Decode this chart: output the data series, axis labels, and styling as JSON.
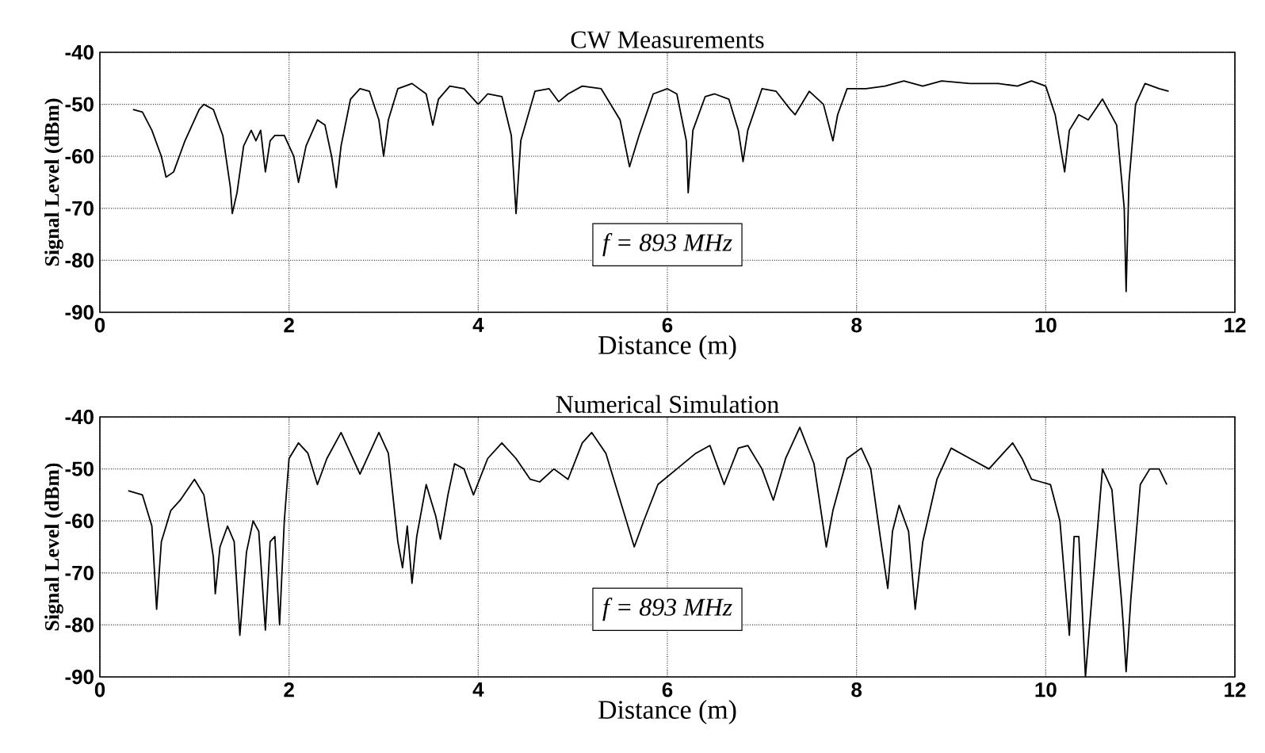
{
  "chart_data": [
    {
      "type": "line",
      "title": "CW Measurements",
      "xlabel": "Distance (m)",
      "ylabel": "Signal Level (dBm)",
      "xlim": [
        0,
        12
      ],
      "ylim": [
        -90,
        -40
      ],
      "xticks": [
        0,
        2,
        4,
        6,
        8,
        10,
        12
      ],
      "yticks": [
        -90,
        -80,
        -70,
        -60,
        -50,
        -40
      ],
      "grid": true,
      "annotations": [
        "f = 893 MHz"
      ],
      "series": [
        {
          "color": "#000000",
          "x": [
            0.35,
            0.45,
            0.55,
            0.65,
            0.7,
            0.78,
            0.9,
            1.05,
            1.1,
            1.2,
            1.3,
            1.38,
            1.4,
            1.45,
            1.52,
            1.6,
            1.65,
            1.7,
            1.75,
            1.8,
            1.85,
            1.95,
            2.05,
            2.1,
            2.18,
            2.3,
            2.38,
            2.45,
            2.5,
            2.55,
            2.65,
            2.75,
            2.85,
            2.95,
            3.0,
            3.05,
            3.15,
            3.3,
            3.45,
            3.52,
            3.58,
            3.7,
            3.85,
            4.0,
            4.1,
            4.25,
            4.35,
            4.4,
            4.45,
            4.6,
            4.75,
            4.85,
            4.95,
            5.1,
            5.3,
            5.5,
            5.6,
            5.7,
            5.85,
            6.0,
            6.1,
            6.2,
            6.22,
            6.27,
            6.4,
            6.5,
            6.65,
            6.75,
            6.8,
            6.85,
            7.0,
            7.15,
            7.3,
            7.35,
            7.5,
            7.65,
            7.75,
            7.8,
            7.9,
            8.1,
            8.3,
            8.5,
            8.7,
            8.9,
            9.2,
            9.5,
            9.7,
            9.85,
            10.0,
            10.1,
            10.2,
            10.25,
            10.35,
            10.45,
            10.6,
            10.75,
            10.83,
            10.85,
            10.88,
            10.95,
            11.05,
            11.2,
            11.3
          ],
          "values": [
            -51,
            -51.5,
            -55,
            -60,
            -64,
            -63,
            -57,
            -51,
            -50,
            -51,
            -56,
            -66,
            -71,
            -67,
            -58,
            -55,
            -57,
            -55,
            -63,
            -57,
            -56,
            -56,
            -60,
            -65,
            -58,
            -53,
            -54,
            -60,
            -66,
            -58,
            -49,
            -47,
            -47.5,
            -53,
            -60,
            -53,
            -47,
            -46,
            -48,
            -54,
            -49,
            -46.5,
            -47,
            -50,
            -48,
            -48.5,
            -56,
            -71,
            -57,
            -47.5,
            -47,
            -49.5,
            -48,
            -46.5,
            -47,
            -53,
            -62,
            -56,
            -48,
            -47,
            -48,
            -57,
            -67,
            -55,
            -48.5,
            -48,
            -49,
            -55,
            -61,
            -55,
            -47,
            -47.5,
            -51,
            -52,
            -47.5,
            -50,
            -57,
            -52,
            -47,
            -47,
            -46.5,
            -45.5,
            -46.5,
            -45.5,
            -46,
            -46,
            -46.5,
            -45.5,
            -46.5,
            -52,
            -63,
            -55,
            -52,
            -53,
            -49,
            -54,
            -70,
            -86,
            -65,
            -50,
            -46,
            -47,
            -47.5
          ]
        }
      ]
    },
    {
      "type": "line",
      "title": "Numerical Simulation",
      "xlabel": "Distance (m)",
      "ylabel": "Signal Level (dBm)",
      "xlim": [
        0,
        12
      ],
      "ylim": [
        -90,
        -40
      ],
      "xticks": [
        0,
        2,
        4,
        6,
        8,
        10,
        12
      ],
      "yticks": [
        -90,
        -80,
        -70,
        -60,
        -50,
        -40
      ],
      "grid": true,
      "annotations": [
        "f = 893 MHz"
      ],
      "series": [
        {
          "color": "#000000",
          "x": [
            0.3,
            0.45,
            0.55,
            0.6,
            0.65,
            0.75,
            0.85,
            1.0,
            1.1,
            1.2,
            1.22,
            1.27,
            1.35,
            1.42,
            1.48,
            1.55,
            1.62,
            1.68,
            1.75,
            1.8,
            1.85,
            1.9,
            1.95,
            2.0,
            2.1,
            2.2,
            2.3,
            2.4,
            2.55,
            2.65,
            2.75,
            2.85,
            2.95,
            3.05,
            3.15,
            3.2,
            3.25,
            3.3,
            3.35,
            3.45,
            3.55,
            3.6,
            3.68,
            3.75,
            3.85,
            3.95,
            4.1,
            4.25,
            4.4,
            4.55,
            4.65,
            4.8,
            4.95,
            5.1,
            5.2,
            5.35,
            5.5,
            5.65,
            5.75,
            5.9,
            6.1,
            6.3,
            6.45,
            6.6,
            6.75,
            6.85,
            7.0,
            7.12,
            7.25,
            7.4,
            7.55,
            7.68,
            7.75,
            7.9,
            8.05,
            8.15,
            8.25,
            8.33,
            8.38,
            8.45,
            8.55,
            8.62,
            8.7,
            8.85,
            9.0,
            9.2,
            9.4,
            9.55,
            9.65,
            9.75,
            9.85,
            9.95,
            10.05,
            10.15,
            10.25,
            10.3,
            10.35,
            10.42,
            10.5,
            10.6,
            10.7,
            10.8,
            10.82,
            10.85,
            10.9,
            11.0,
            11.1,
            11.2,
            11.28
          ],
          "values": [
            -54.2,
            -55,
            -61,
            -77,
            -64,
            -58,
            -56,
            -52,
            -55,
            -67,
            -74,
            -65,
            -61,
            -64,
            -82,
            -66,
            -60,
            -62,
            -81,
            -64,
            -63,
            -80,
            -60,
            -48,
            -45,
            -47,
            -53,
            -48,
            -43,
            -47,
            -51,
            -47,
            -43,
            -47,
            -64,
            -69,
            -61,
            -72,
            -63,
            -53,
            -59,
            -63.5,
            -55,
            -49,
            -50,
            -55,
            -48,
            -45,
            -48,
            -52,
            -52.5,
            -50,
            -52,
            -45,
            -43,
            -47,
            -56,
            -65,
            -60,
            -53,
            -50,
            -47,
            -45.5,
            -53,
            -46,
            -45.5,
            -50,
            -56,
            -48,
            -42,
            -49,
            -65,
            -58,
            -48,
            -46,
            -50,
            -63,
            -73,
            -62,
            -57,
            -62,
            -77,
            -64,
            -52,
            -46,
            -48,
            -50,
            -47,
            -45,
            -48,
            -52,
            -52.5,
            -53,
            -60,
            -82,
            -63,
            -63,
            -90,
            -72,
            -50,
            -54,
            -75,
            -80,
            -89,
            -75,
            -53,
            -50,
            -50,
            -53
          ]
        }
      ]
    }
  ]
}
